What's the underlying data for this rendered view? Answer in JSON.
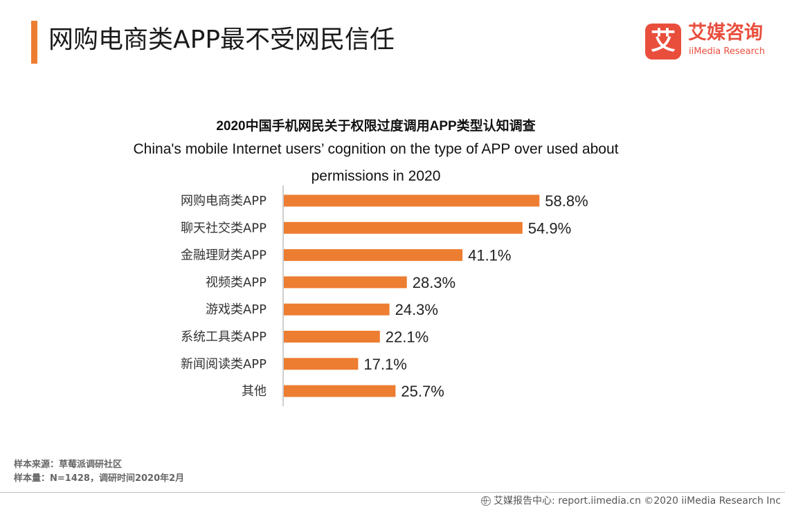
{
  "header": {
    "title": "网购电商类APP最不受网民信任",
    "accent_color": "#ED7D31"
  },
  "logo": {
    "mark": "艾",
    "name_cn": "艾媒咨询",
    "name_en": "iiMedia Research",
    "color": "#E94E3D"
  },
  "chart_data": {
    "type": "bar",
    "orientation": "horizontal",
    "title_cn": "2020中国手机网民关于权限过度调用APP类型认知调查",
    "title_en_line1": "China's mobile Internet users’  cognition on the type of APP over used about",
    "title_en_line2": "permissions  in 2020",
    "categories": [
      "网购电商类APP",
      "聊天社交类APP",
      "金融理财类APP",
      "视频类APP",
      "游戏类APP",
      "系统工具类APP",
      "新闻阅读类APP",
      "其他"
    ],
    "values": [
      58.8,
      54.9,
      41.1,
      28.3,
      24.3,
      22.1,
      17.1,
      25.7
    ],
    "value_labels": [
      "58.8%",
      "54.9%",
      "41.1%",
      "28.3%",
      "24.3%",
      "22.1%",
      "17.1%",
      "25.7%"
    ],
    "unit": "%",
    "bar_color": "#ED7D31",
    "xlim": [
      0,
      100
    ],
    "grid": false,
    "legend": "none"
  },
  "footer": {
    "source": "样本来源：草莓派调研社区",
    "sample": "样本量：N=1428，调研时间2020年2月",
    "credit": "艾媒报告中心: report.iimedia.cn  ©2020  iiMedia Research  Inc",
    "icon": "globe-icon"
  }
}
